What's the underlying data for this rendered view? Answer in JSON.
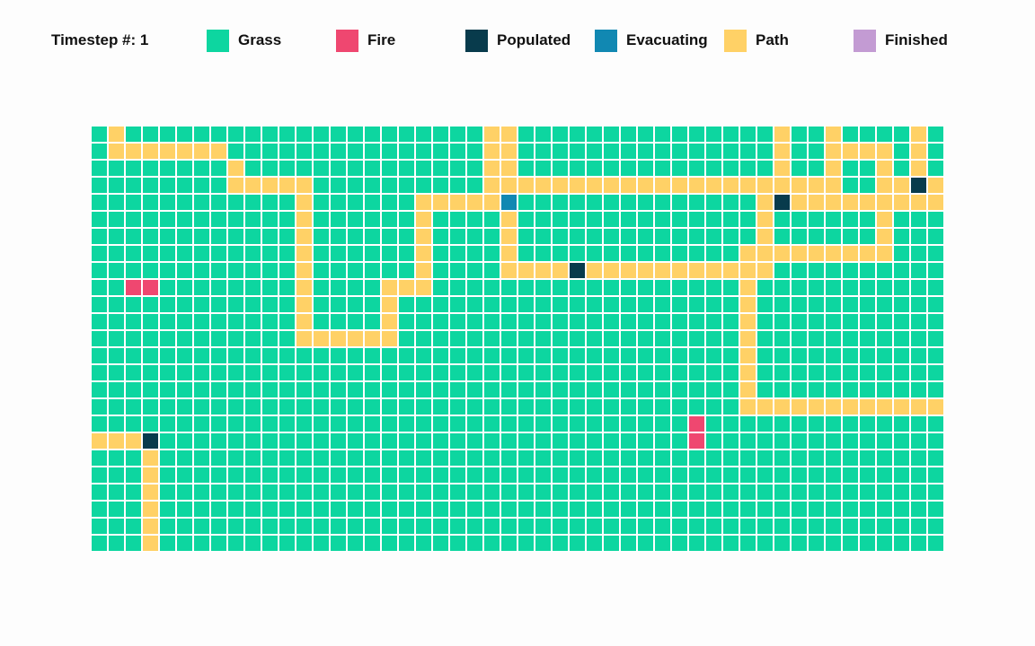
{
  "header": {
    "timestep_label": "Timestep #:",
    "timestep_value": "1"
  },
  "legend": [
    {
      "key": "G",
      "label": "Grass",
      "color": "#0dd6a0"
    },
    {
      "key": "F",
      "label": "Fire",
      "color": "#ef4770"
    },
    {
      "key": "P",
      "label": "Populated",
      "color": "#083b4c"
    },
    {
      "key": "E",
      "label": "Evacuating",
      "color": "#1188b2"
    },
    {
      "key": "A",
      "label": "Path",
      "color": "#ffd166"
    },
    {
      "key": "D",
      "label": "Finished",
      "color": "#c39bd3"
    }
  ],
  "grid": {
    "columns": 50,
    "rows": [
      "GAGGGGGGGGGGGGGGGGGGGGGAAGGGGGGGGGGGGGGGAGGAGGGGAG",
      "GAAAAAAAGGGGGGGGGGGGGGGAAGGGGGGGGGGGGGGGAGGAAAAGAG",
      "GGGGGGGGAGGGGGGGGGGGGGGAAGGGGGGGGGGGGGGGAGGAGGAGAG",
      "GGGGGGGGAAAAAGGGGGGGGGGAAAAAAAAAAAAAAAAAAAAAGGAAPA",
      "GGGGGGGGGGGGAGGGGGGAAAAAEGGGGGGGGGGGGGGAPAAAAAAAAA",
      "GGGGGGGGGGGGAGGGGGGAGGGGAGGGGGGGGGGGGGGAGGGGGGAGGG",
      "GGGGGGGGGGGGAGGGGGGAGGGGAGGGGGGGGGGGGGGAGGGGGGAGGG",
      "GGGGGGGGGGGGAGGGGGGAGGGGAGGGGGGGGGGGGGAAAAAAAAAGGG",
      "GGGGGGGGGGGGAGGGGGGAGGGGAAAAPAAAAAAAAAAAGGGGGGGGGG",
      "GGFFGGGGGGGGAGGGGAAAGGGGGGGGGGGGGGGGGGAGGGGGGGGGGG",
      "GGGGGGGGGGGGAGGGGAGGGGGGGGGGGGGGGGGGGGAGGGGGGGGGGG",
      "GGGGGGGGGGGGAGGGGAGGGGGGGGGGGGGGGGGGGGAGGGGGGGGGGG",
      "GGGGGGGGGGGGAAAAAAGGGGGGGGGGGGGGGGGGGGAGGGGGGGGGGG",
      "GGGGGGGGGGGGGGGGGGGGGGGGGGGGGGGGGGGGGGAGGGGGGGGGGG",
      "GGGGGGGGGGGGGGGGGGGGGGGGGGGGGGGGGGGGGGAGGGGGGGGGGG",
      "GGGGGGGGGGGGGGGGGGGGGGGGGGGGGGGGGGGGGGAGGGGGGGGGGG",
      "GGGGGGGGGGGGGGGGGGGGGGGGGGGGGGGGGGGGGGAAAAAAAAAAAA",
      "GGGGGGGGGGGGGGGGGGGGGGGGGGGGGGGGGGGFGGGGGGGGGGGGGG",
      "AAAPGGGGGGGGGGGGGGGGGGGGGGGGGGGGGGGFGGGGGGGGGGGGGG",
      "GGGAGGGGGGGGGGGGGGGGGGGGGGGGGGGGGGGGGGGGGGGGGGGGGG",
      "GGGAGGGGGGGGGGGGGGGGGGGGGGGGGGGGGGGGGGGGGGGGGGGGGG",
      "GGGAGGGGGGGGGGGGGGGGGGGGGGGGGGGGGGGGGGGGGGGGGGGGGG",
      "GGGAGGGGGGGGGGGGGGGGGGGGGGGGGGGGGGGGGGGGGGGGGGGGGG",
      "GGGAGGGGGGGGGGGGGGGGGGGGGGGGGGGGGGGGGGGGGGGGGGGGGG",
      "GGGAGGGGGGGGGGGGGGGGGGGGGGGGGGGGGGGGGGGGGGGGGGGGGG"
    ]
  }
}
